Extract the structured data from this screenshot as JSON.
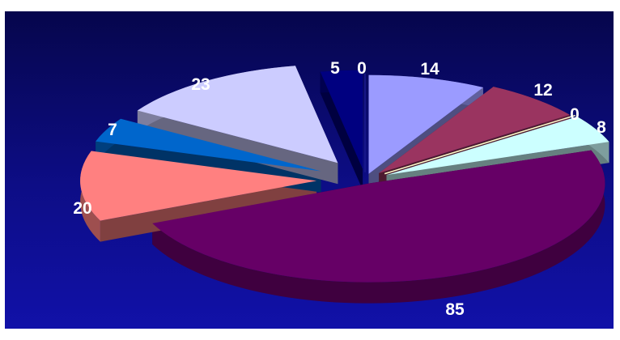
{
  "chart_data": {
    "type": "pie",
    "title": "",
    "values": [
      14,
      12,
      0,
      8,
      85,
      20,
      7,
      23,
      5,
      0
    ],
    "labels": [
      "14",
      "12",
      "0",
      "8",
      "85",
      "20",
      "7",
      "23",
      "5",
      "0"
    ],
    "colors": [
      "#9b9bff",
      "#9a3460",
      "#ffffcc",
      "#ccffff",
      "#660066",
      "#ff8080",
      "#0066cc",
      "#ccccff",
      "#000080",
      "#1a1a90"
    ],
    "legend": "none",
    "style": "3d exploded"
  }
}
